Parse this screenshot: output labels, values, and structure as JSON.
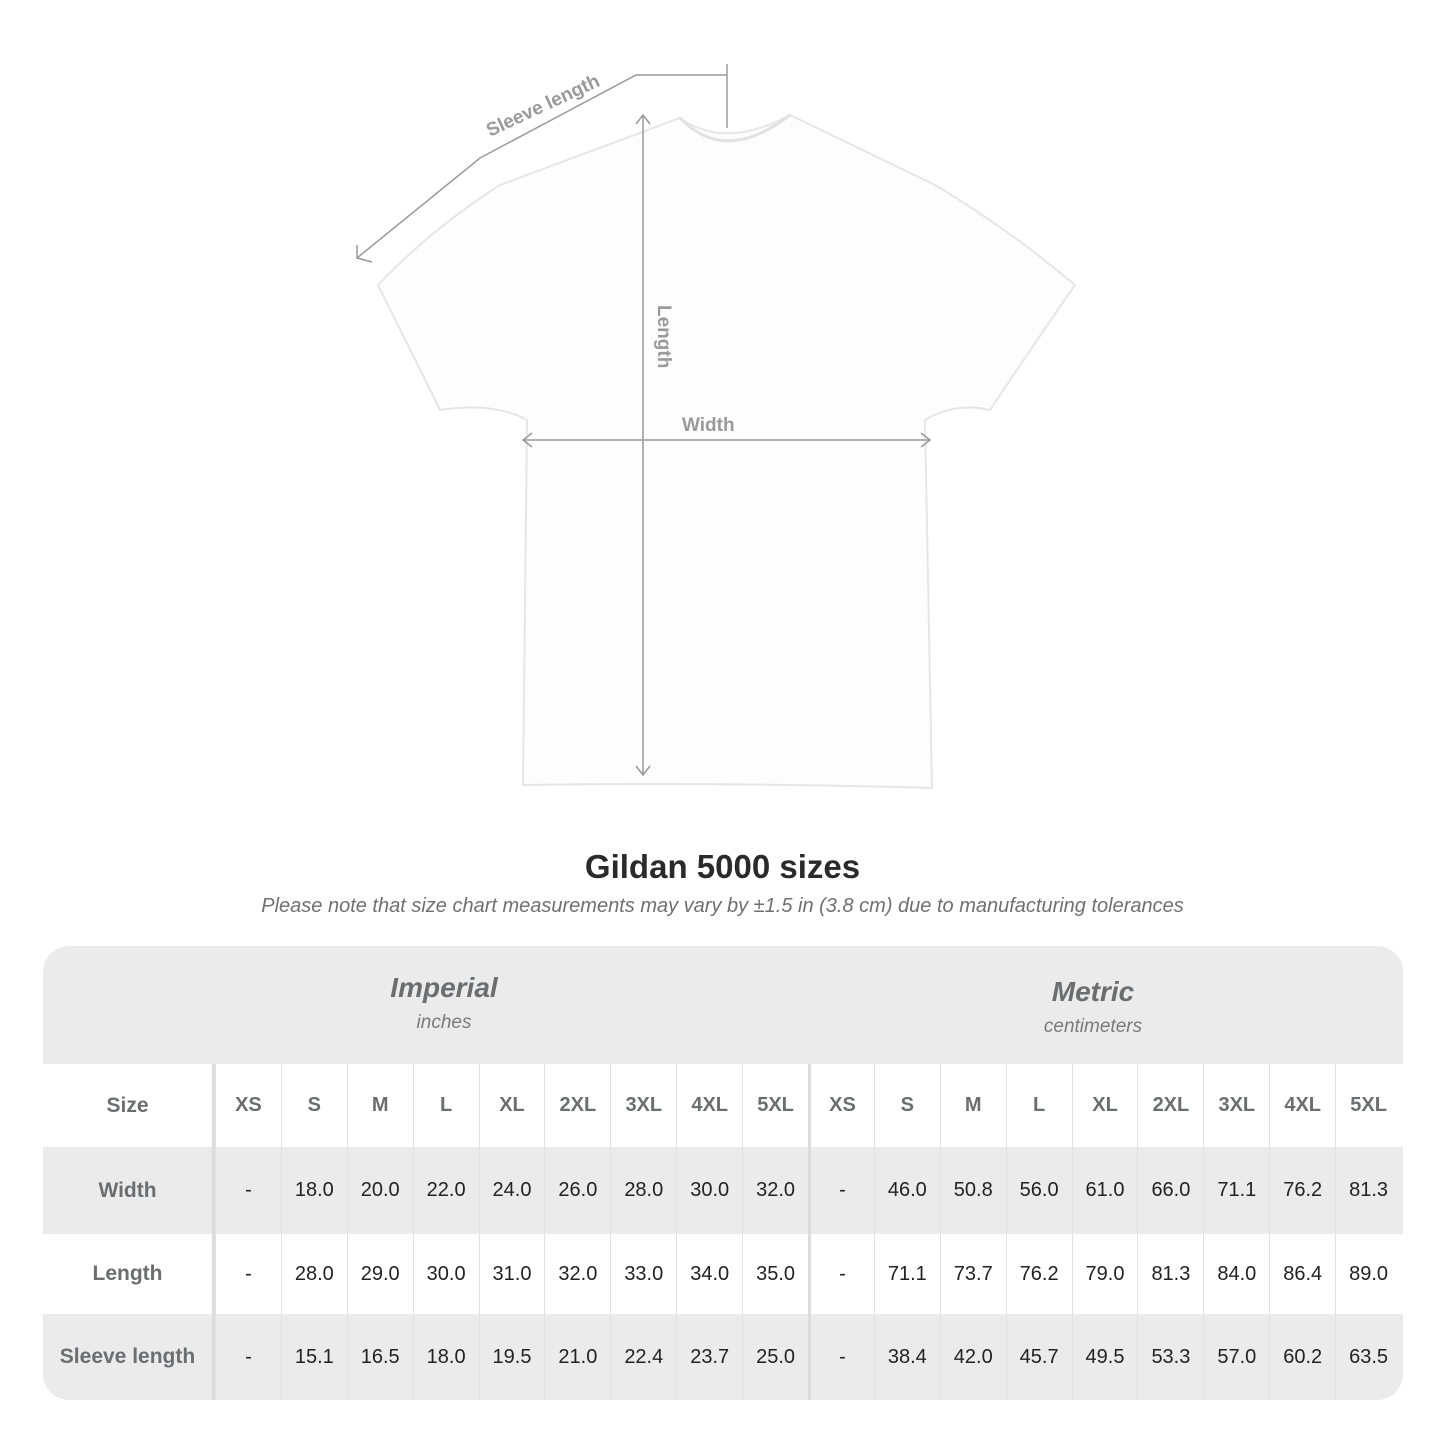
{
  "diagram": {
    "sleeve_label": "Sleeve length",
    "length_label": "Length",
    "width_label": "Width",
    "line_color": "#9a9a9a"
  },
  "title": "Gildan 5000 sizes",
  "subtitle": "Please note that size chart measurements may vary by ±1.5 in (3.8 cm) due to manufacturing tolerances",
  "table": {
    "imperial": {
      "name": "Imperial",
      "unit": "inches"
    },
    "metric": {
      "name": "Metric",
      "unit": "centimeters"
    },
    "size_label": "Size",
    "sizes": [
      "XS",
      "S",
      "M",
      "L",
      "XL",
      "2XL",
      "3XL",
      "4XL",
      "5XL"
    ],
    "rows": [
      {
        "label": "Width",
        "imperial": [
          "-",
          "18.0",
          "20.0",
          "22.0",
          "24.0",
          "26.0",
          "28.0",
          "30.0",
          "32.0"
        ],
        "metric": [
          "-",
          "46.0",
          "50.8",
          "56.0",
          "61.0",
          "66.0",
          "71.1",
          "76.2",
          "81.3"
        ]
      },
      {
        "label": "Length",
        "imperial": [
          "-",
          "28.0",
          "29.0",
          "30.0",
          "31.0",
          "32.0",
          "33.0",
          "34.0",
          "35.0"
        ],
        "metric": [
          "-",
          "71.1",
          "73.7",
          "76.2",
          "79.0",
          "81.3",
          "84.0",
          "86.4",
          "89.0"
        ]
      },
      {
        "label": "Sleeve length",
        "imperial": [
          "-",
          "15.1",
          "16.5",
          "18.0",
          "19.5",
          "21.0",
          "22.4",
          "23.7",
          "25.0"
        ],
        "metric": [
          "-",
          "38.4",
          "42.0",
          "45.7",
          "49.5",
          "53.3",
          "57.0",
          "60.2",
          "63.5"
        ]
      }
    ]
  }
}
